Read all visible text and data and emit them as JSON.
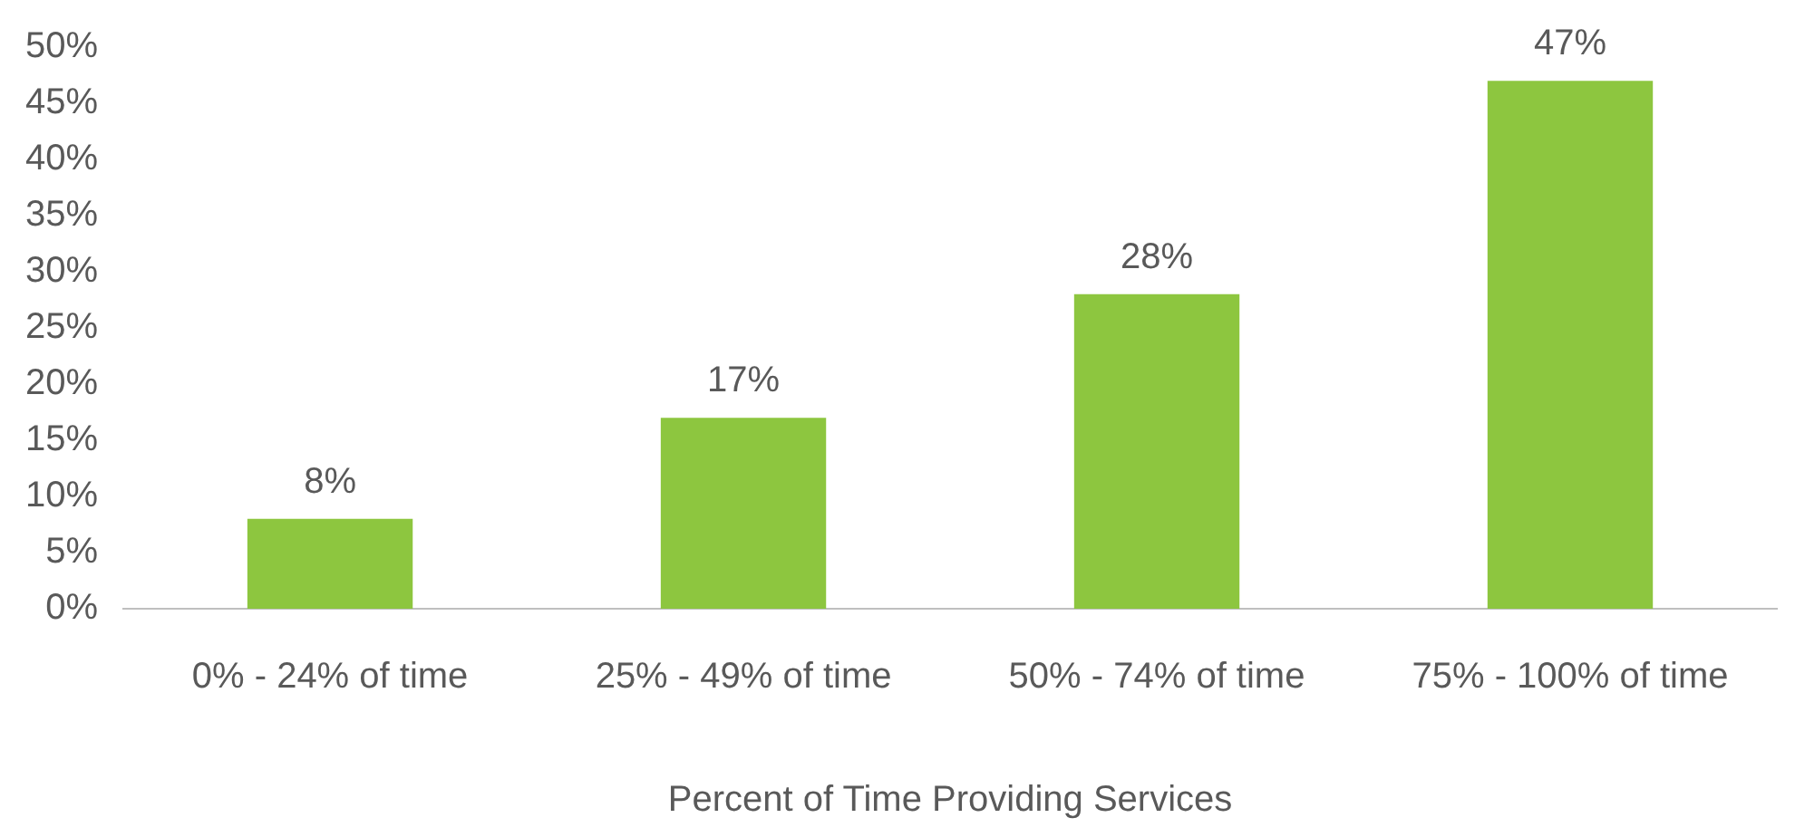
{
  "chart_data": {
    "type": "bar",
    "xlabel": "Percent of Time Providing Services",
    "categories": [
      "0% - 24% of time",
      "25% - 49% of time",
      "50% - 74% of time",
      "75% - 100% of time"
    ],
    "values": [
      8,
      17,
      28,
      47
    ],
    "value_labels": [
      "8%",
      "17%",
      "28%",
      "47%"
    ],
    "color": "#8dc63f",
    "grid": false,
    "legend": false,
    "ylim": [
      0,
      50
    ],
    "yticks": [
      {
        "value": 0,
        "label": "0%"
      },
      {
        "value": 5,
        "label": "5%"
      },
      {
        "value": 10,
        "label": "10%"
      },
      {
        "value": 15,
        "label": "15%"
      },
      {
        "value": 20,
        "label": "20%"
      },
      {
        "value": 25,
        "label": "25%"
      },
      {
        "value": 30,
        "label": "30%"
      },
      {
        "value": 35,
        "label": "35%"
      },
      {
        "value": 40,
        "label": "40%"
      },
      {
        "value": 45,
        "label": "45%"
      },
      {
        "value": 50,
        "label": "50%"
      }
    ]
  }
}
